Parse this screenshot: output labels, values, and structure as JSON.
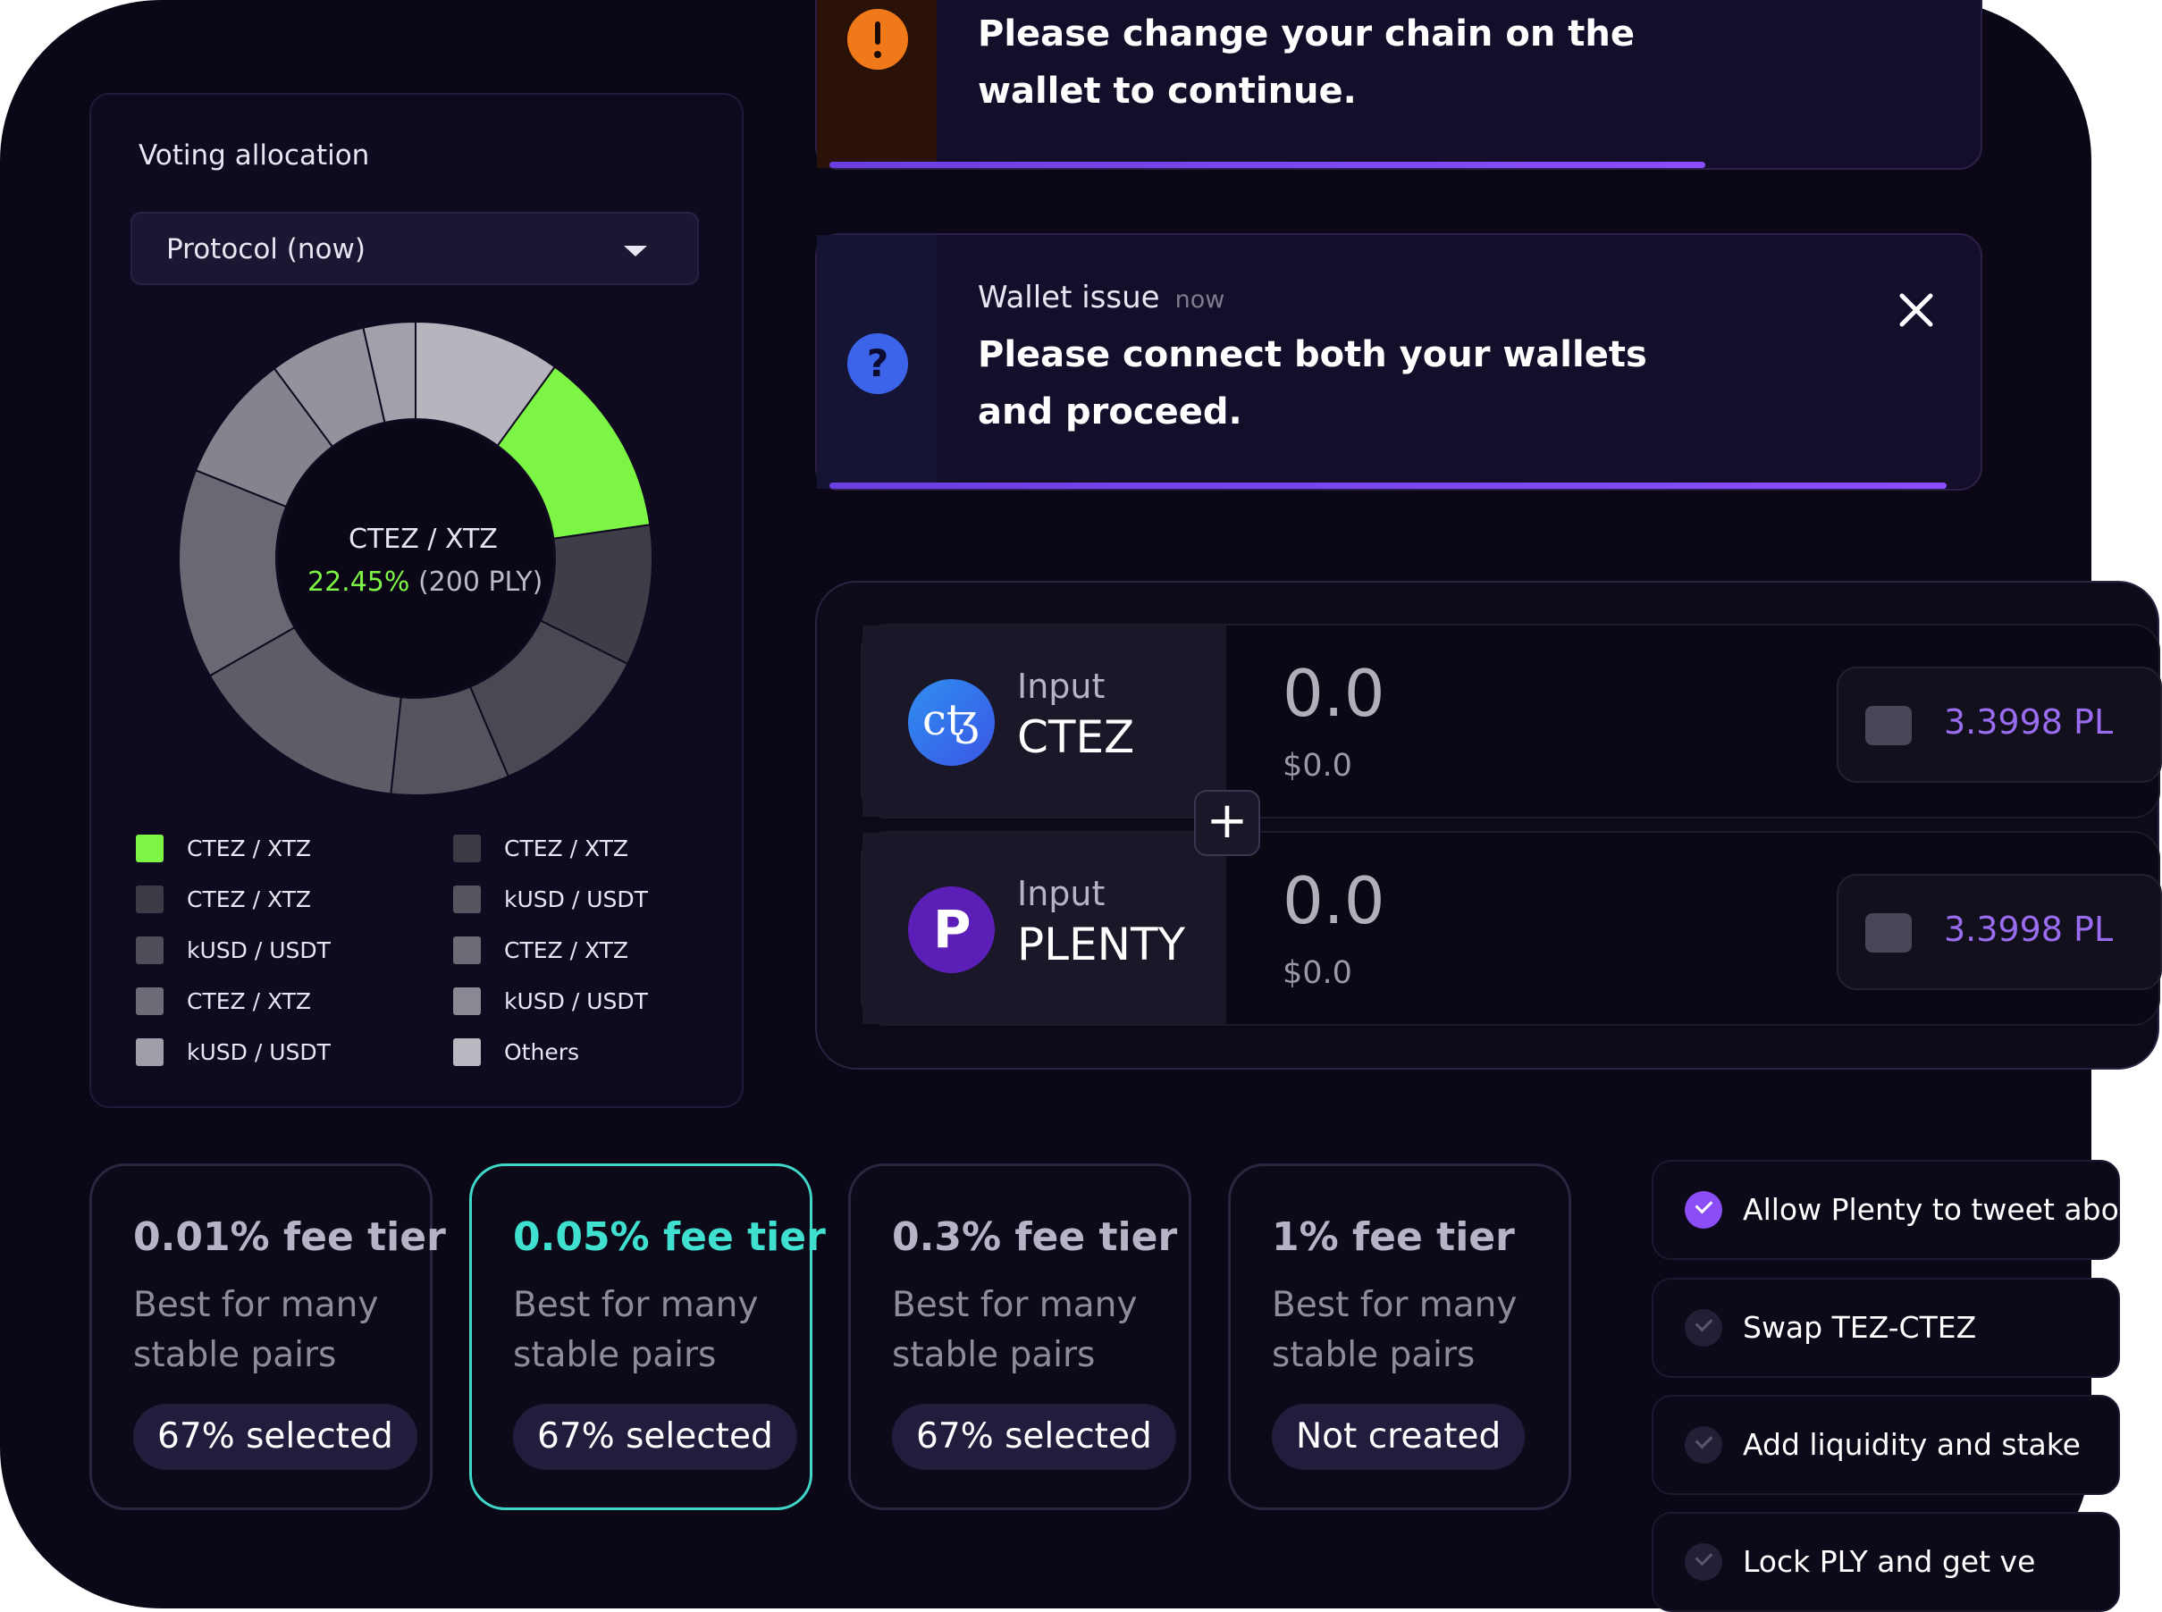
{
  "voting": {
    "title": "Voting allocation",
    "dropdown_value": "Protocol (now)",
    "center_pair": "CTEZ / XTZ",
    "center_percent": "22.45%",
    "center_amount": "(200 PLY)",
    "highlight_color": "#7df545",
    "legend": [
      {
        "label": "CTEZ / XTZ",
        "color": "#7df545"
      },
      {
        "label": "CTEZ / XTZ",
        "color": "#3c3a44"
      },
      {
        "label": "kUSD / USDT",
        "color": "#4f4d57"
      },
      {
        "label": "CTEZ / XTZ",
        "color": "#6d6b75"
      },
      {
        "label": "kUSD / USDT",
        "color": "#a09ea8"
      },
      {
        "label": "CTEZ / XTZ",
        "color": "#3c3a44"
      },
      {
        "label": "kUSD / USDT",
        "color": "#56545e"
      },
      {
        "label": "CTEZ / XTZ",
        "color": "#6d6b75"
      },
      {
        "label": "kUSD / USDT",
        "color": "#8a8892"
      },
      {
        "label": "Others",
        "color": "#b9b7c0"
      }
    ]
  },
  "alerts": {
    "chain": {
      "message": "Please change your chain on the wallet to  continue.",
      "line1": "Please change your chain on the",
      "line2": "wallet to  continue.",
      "icon_color": "#f07a1a"
    },
    "wallet": {
      "title": "Wallet issue",
      "time": "now",
      "line1": "Please connect both your wallets",
      "line2": "and proceed.",
      "icon_color": "#3b64ea"
    }
  },
  "liquidity": {
    "rows": [
      {
        "label": "Input",
        "symbol": "CTEZ",
        "amount": "0.0",
        "usd": "$0.0",
        "balance": "3.3998 PL"
      },
      {
        "label": "Input",
        "symbol": "PLENTY",
        "amount": "0.0",
        "usd": "$0.0",
        "balance": "3.3998 PL"
      }
    ],
    "plus": "+"
  },
  "fee_tiers": [
    {
      "title": "0.01% fee tier",
      "desc1": "Best for many",
      "desc2": "stable pairs",
      "status": "67% selected",
      "active": false
    },
    {
      "title": "0.05% fee tier",
      "desc1": "Best for many",
      "desc2": "stable pairs",
      "status": "67% selected",
      "active": true
    },
    {
      "title": "0.3% fee tier",
      "desc1": "Best for many",
      "desc2": "stable pairs",
      "status": "67% selected",
      "active": false
    },
    {
      "title": "1% fee tier",
      "desc1": "Best for many",
      "desc2": "stable pairs",
      "status": "Not created",
      "active": false
    }
  ],
  "tasks": [
    {
      "label": "Allow Plenty to tweet abo",
      "done": true
    },
    {
      "label": "Swap  TEZ-CTEZ",
      "done": false
    },
    {
      "label": "Add liquidity and stake",
      "done": false
    },
    {
      "label": "Lock PLY and get ve",
      "done": false
    }
  ],
  "colors": {
    "accent_teal": "#3fe0cf",
    "accent_purple": "#8b4df5"
  }
}
